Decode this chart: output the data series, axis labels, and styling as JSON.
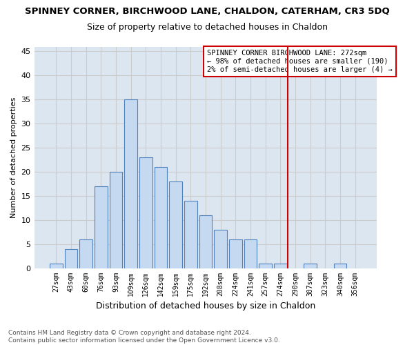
{
  "title": "SPINNEY CORNER, BIRCHWOOD LANE, CHALDON, CATERHAM, CR3 5DQ",
  "subtitle": "Size of property relative to detached houses in Chaldon",
  "xlabel": "Distribution of detached houses by size in Chaldon",
  "ylabel": "Number of detached properties",
  "footnote1": "Contains HM Land Registry data © Crown copyright and database right 2024.",
  "footnote2": "Contains public sector information licensed under the Open Government Licence v3.0.",
  "bar_labels": [
    "27sqm",
    "43sqm",
    "60sqm",
    "76sqm",
    "93sqm",
    "109sqm",
    "126sqm",
    "142sqm",
    "159sqm",
    "175sqm",
    "192sqm",
    "208sqm",
    "224sqm",
    "241sqm",
    "257sqm",
    "274sqm",
    "290sqm",
    "307sqm",
    "323sqm",
    "340sqm",
    "356sqm"
  ],
  "bar_values": [
    1,
    4,
    6,
    17,
    20,
    35,
    23,
    21,
    18,
    14,
    11,
    8,
    6,
    6,
    1,
    1,
    0,
    1,
    0,
    1,
    0
  ],
  "bar_color": "#c5d9f1",
  "bar_edge_color": "#4f81bd",
  "vline_x": 15.5,
  "vline_color": "#cc0000",
  "annotation_text": "SPINNEY CORNER BIRCHWOOD LANE: 272sqm\n← 98% of detached houses are smaller (190)\n2% of semi-detached houses are larger (4) →",
  "annotation_box_color": "#ffffff",
  "annotation_border_color": "#cc0000",
  "ylim": [
    0,
    46
  ],
  "yticks": [
    0,
    5,
    10,
    15,
    20,
    25,
    30,
    35,
    40,
    45
  ],
  "grid_color": "#cccccc",
  "bg_color": "#dce6f1",
  "title_fontsize": 9.5,
  "subtitle_fontsize": 9
}
